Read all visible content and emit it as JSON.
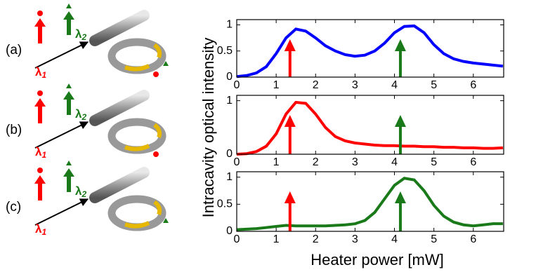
{
  "figure": {
    "ylabel": "Intracavity optical intensity",
    "xlabel": "Heater power [mW]",
    "panels": [
      {
        "label": "(a)"
      },
      {
        "label": "(b)"
      },
      {
        "label": "(c)"
      }
    ],
    "lambda": "λ",
    "sub1": "1",
    "sub2": "2"
  },
  "chart_data": [
    {
      "type": "line",
      "color": "#0000ff",
      "x": [
        0,
        0.25,
        0.5,
        0.75,
        1,
        1.25,
        1.5,
        1.75,
        2,
        2.25,
        2.5,
        2.75,
        3,
        3.25,
        3.5,
        3.75,
        4,
        4.25,
        4.5,
        4.75,
        5,
        5.25,
        5.5,
        5.75,
        6,
        6.25,
        6.5,
        6.75
      ],
      "values": [
        0.01,
        0.03,
        0.08,
        0.2,
        0.45,
        0.75,
        0.92,
        0.88,
        0.75,
        0.6,
        0.5,
        0.43,
        0.4,
        0.42,
        0.5,
        0.65,
        0.85,
        0.97,
        0.98,
        0.85,
        0.62,
        0.45,
        0.35,
        0.3,
        0.27,
        0.25,
        0.23,
        0.21
      ],
      "xlim": [
        0,
        6.77
      ],
      "ylim": [
        0,
        1.1
      ],
      "xticks": [
        0,
        1,
        2,
        3,
        4,
        5,
        6
      ],
      "yticks": [
        0,
        0.5,
        1
      ],
      "arrows": [
        {
          "x": 1.35,
          "color": "#ff0000"
        },
        {
          "x": 4.15,
          "color": "#1a7a1a"
        }
      ]
    },
    {
      "type": "line",
      "color": "#ff0000",
      "x": [
        0,
        0.25,
        0.5,
        0.75,
        1,
        1.25,
        1.5,
        1.75,
        2,
        2.25,
        2.5,
        2.75,
        3,
        3.25,
        3.5,
        3.75,
        4,
        4.25,
        4.5,
        4.75,
        5,
        5.25,
        5.5,
        5.75,
        6,
        6.25,
        6.5,
        6.75
      ],
      "values": [
        0,
        0.01,
        0.05,
        0.15,
        0.38,
        0.75,
        0.97,
        0.95,
        0.75,
        0.5,
        0.33,
        0.25,
        0.21,
        0.19,
        0.17,
        0.16,
        0.16,
        0.15,
        0.15,
        0.14,
        0.14,
        0.13,
        0.13,
        0.12,
        0.12,
        0.11,
        0.11,
        0.12
      ],
      "xlim": [
        0,
        6.77
      ],
      "ylim": [
        0,
        1.1
      ],
      "xticks": [
        0,
        1,
        2,
        3,
        4,
        5,
        6
      ],
      "yticks": [
        0,
        1
      ],
      "arrows": [
        {
          "x": 1.35,
          "color": "#ff0000"
        },
        {
          "x": 4.15,
          "color": "#1a7a1a"
        }
      ]
    },
    {
      "type": "line",
      "color": "#1a7a1a",
      "x": [
        0,
        0.25,
        0.5,
        0.75,
        1,
        1.25,
        1.5,
        1.75,
        2,
        2.25,
        2.5,
        2.75,
        3,
        3.25,
        3.5,
        3.75,
        4,
        4.25,
        4.5,
        4.75,
        5,
        5.25,
        5.5,
        5.75,
        6,
        6.25,
        6.5,
        6.75
      ],
      "values": [
        0.03,
        0.04,
        0.05,
        0.07,
        0.09,
        0.11,
        0.1,
        0.1,
        0.1,
        0.1,
        0.11,
        0.12,
        0.14,
        0.2,
        0.35,
        0.6,
        0.85,
        0.98,
        0.95,
        0.75,
        0.48,
        0.28,
        0.17,
        0.12,
        0.1,
        0.12,
        0.14,
        0.14
      ],
      "xlim": [
        0,
        6.77
      ],
      "ylim": [
        0,
        1.1
      ],
      "xticks": [
        0,
        1,
        2,
        3,
        4,
        5,
        6
      ],
      "yticks": [
        0,
        0.5,
        1
      ],
      "arrows": [
        {
          "x": 1.35,
          "color": "#ff0000"
        },
        {
          "x": 4.15,
          "color": "#1a7a1a"
        }
      ]
    }
  ]
}
